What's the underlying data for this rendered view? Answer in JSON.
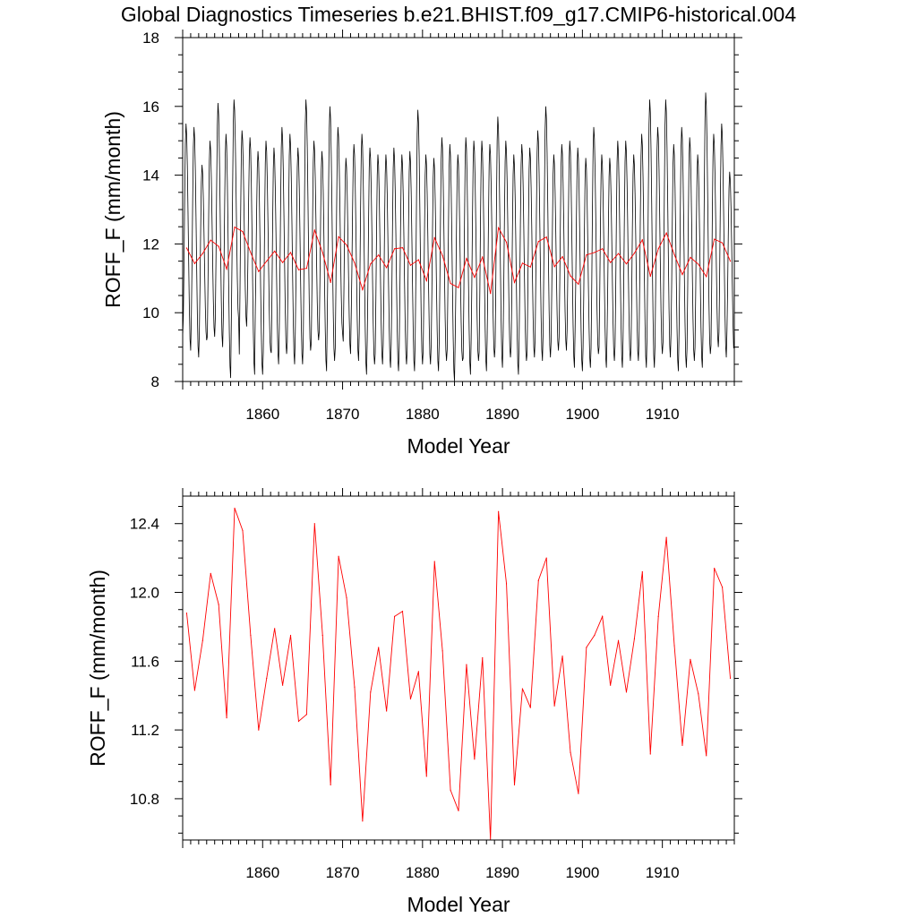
{
  "title": "Global Diagnostics Timeseries b.e21.BHIST.f09_g17.CMIP6-historical.004",
  "colors": {
    "monthly": "#000000",
    "annual": "#ff0000",
    "axis": "#000000",
    "background": "#ffffff"
  },
  "chart_data": [
    {
      "type": "line",
      "xlabel": "Model Year",
      "ylabel": "ROFF_F (mm/month)",
      "xlim": [
        1850,
        1919
      ],
      "ylim": [
        8,
        18
      ],
      "xticks": [
        1860,
        1870,
        1880,
        1890,
        1900,
        1910
      ],
      "xtick_labels": [
        "1860",
        "1870",
        "1880",
        "1890",
        "1900",
        "1910"
      ],
      "yticks": [
        8,
        10,
        12,
        14,
        16,
        18
      ],
      "ytick_labels": [
        "8",
        "10",
        "12",
        "14",
        "16",
        "18"
      ],
      "series": [
        {
          "name": "monthly",
          "annual_max": [
            15.5,
            15.4,
            14.3,
            15.0,
            16.1,
            15.2,
            16.2,
            15.3,
            15.1,
            14.7,
            15.0,
            14.8,
            15.4,
            15.2,
            14.8,
            16.2,
            15.0,
            14.7,
            16.0,
            15.4,
            14.5,
            14.9,
            15.2,
            14.8,
            14.6,
            14.6,
            14.8,
            14.6,
            14.7,
            15.9,
            14.6,
            14.5,
            15.1,
            14.9,
            14.6,
            15.1,
            15.0,
            15.0,
            14.9,
            15.7,
            15.0,
            14.6,
            14.9,
            14.8,
            15.3,
            16.0,
            14.6,
            14.9,
            15.0,
            14.8,
            14.5,
            15.4,
            14.6,
            14.5,
            15.0,
            15.0,
            14.6,
            15.2,
            16.2,
            15.4,
            16.2,
            14.9,
            15.4,
            15.1,
            14.6,
            16.4,
            15.2,
            15.5,
            14.1
          ],
          "annual_min": [
            9.3,
            8.9,
            8.7,
            9.2,
            9.3,
            9.0,
            8.1,
            9.8,
            9.6,
            8.2,
            8.2,
            8.9,
            8.5,
            8.8,
            8.5,
            8.5,
            8.9,
            9.2,
            8.3,
            8.6,
            9.4,
            8.8,
            8.6,
            8.2,
            8.5,
            8.5,
            8.4,
            8.3,
            8.5,
            8.3,
            8.5,
            8.5,
            8.3,
            8.6,
            8.0,
            8.6,
            8.2,
            8.6,
            8.3,
            8.7,
            8.4,
            8.7,
            8.2,
            8.6,
            8.7,
            8.6,
            8.7,
            8.9,
            8.9,
            8.4,
            8.3,
            8.4,
            8.8,
            8.4,
            8.6,
            8.4,
            8.6,
            8.6,
            8.4,
            8.4,
            8.8,
            8.7,
            8.3,
            8.4,
            8.6,
            8.4,
            8.8,
            9.0,
            8.7
          ],
          "peak_month": 5
        },
        {
          "name": "annual",
          "x": [
            1850,
            1851,
            1852,
            1853,
            1854,
            1855,
            1856,
            1857,
            1858,
            1859,
            1860,
            1861,
            1862,
            1863,
            1864,
            1865,
            1866,
            1867,
            1868,
            1869,
            1870,
            1871,
            1872,
            1873,
            1874,
            1875,
            1876,
            1877,
            1878,
            1879,
            1880,
            1881,
            1882,
            1883,
            1884,
            1885,
            1886,
            1887,
            1888,
            1889,
            1890,
            1891,
            1892,
            1893,
            1894,
            1895,
            1896,
            1897,
            1898,
            1899,
            1900,
            1901,
            1902,
            1903,
            1904,
            1905,
            1906,
            1907,
            1908,
            1909,
            1910,
            1911,
            1912,
            1913,
            1914,
            1915,
            1916,
            1917,
            1918
          ],
          "values": [
            11.88,
            11.43,
            11.72,
            12.11,
            11.93,
            11.27,
            12.49,
            12.36,
            11.75,
            11.2,
            11.5,
            11.79,
            11.46,
            11.75,
            11.25,
            11.29,
            12.4,
            11.75,
            10.88,
            12.21,
            11.97,
            11.45,
            10.67,
            11.42,
            11.68,
            11.31,
            11.86,
            11.89,
            11.38,
            11.54,
            10.93,
            12.18,
            11.66,
            10.85,
            10.73,
            11.58,
            11.03,
            11.62,
            10.56,
            12.47,
            12.05,
            10.88,
            11.44,
            11.33,
            12.07,
            12.2,
            11.34,
            11.63,
            11.07,
            10.83,
            11.68,
            11.75,
            11.86,
            11.46,
            11.72,
            11.42,
            11.73,
            12.12,
            11.06,
            11.86,
            12.32,
            11.69,
            11.11,
            11.61,
            11.41,
            11.05,
            12.14,
            12.03,
            11.5
          ]
        }
      ]
    },
    {
      "type": "line",
      "xlabel": "Model Year",
      "ylabel": "ROFF_F (mm/month)",
      "xlim": [
        1850,
        1919
      ],
      "ylim": [
        10.56,
        12.56
      ],
      "xticks": [
        1860,
        1870,
        1880,
        1890,
        1900,
        1910
      ],
      "xtick_labels": [
        "1860",
        "1870",
        "1880",
        "1890",
        "1900",
        "1910"
      ],
      "yticks": [
        10.8,
        11.2,
        11.6,
        12.0,
        12.4
      ],
      "ytick_labels": [
        "10.8",
        "11.2",
        "11.6",
        "12.0",
        "12.4"
      ],
      "series": [
        {
          "name": "annual",
          "x": [
            1850,
            1851,
            1852,
            1853,
            1854,
            1855,
            1856,
            1857,
            1858,
            1859,
            1860,
            1861,
            1862,
            1863,
            1864,
            1865,
            1866,
            1867,
            1868,
            1869,
            1870,
            1871,
            1872,
            1873,
            1874,
            1875,
            1876,
            1877,
            1878,
            1879,
            1880,
            1881,
            1882,
            1883,
            1884,
            1885,
            1886,
            1887,
            1888,
            1889,
            1890,
            1891,
            1892,
            1893,
            1894,
            1895,
            1896,
            1897,
            1898,
            1899,
            1900,
            1901,
            1902,
            1903,
            1904,
            1905,
            1906,
            1907,
            1908,
            1909,
            1910,
            1911,
            1912,
            1913,
            1914,
            1915,
            1916,
            1917,
            1918
          ],
          "values": [
            11.88,
            11.43,
            11.72,
            12.11,
            11.93,
            11.27,
            12.49,
            12.36,
            11.75,
            11.2,
            11.5,
            11.79,
            11.46,
            11.75,
            11.25,
            11.29,
            12.4,
            11.75,
            10.88,
            12.21,
            11.97,
            11.45,
            10.67,
            11.42,
            11.68,
            11.31,
            11.86,
            11.89,
            11.38,
            11.54,
            10.93,
            12.18,
            11.66,
            10.85,
            10.73,
            11.58,
            11.03,
            11.62,
            10.56,
            12.47,
            12.05,
            10.88,
            11.44,
            11.33,
            12.07,
            12.2,
            11.34,
            11.63,
            11.07,
            10.83,
            11.68,
            11.75,
            11.86,
            11.46,
            11.72,
            11.42,
            11.73,
            12.12,
            11.06,
            11.86,
            12.32,
            11.69,
            11.11,
            11.61,
            11.41,
            11.05,
            12.14,
            12.03,
            11.5
          ]
        }
      ]
    }
  ]
}
